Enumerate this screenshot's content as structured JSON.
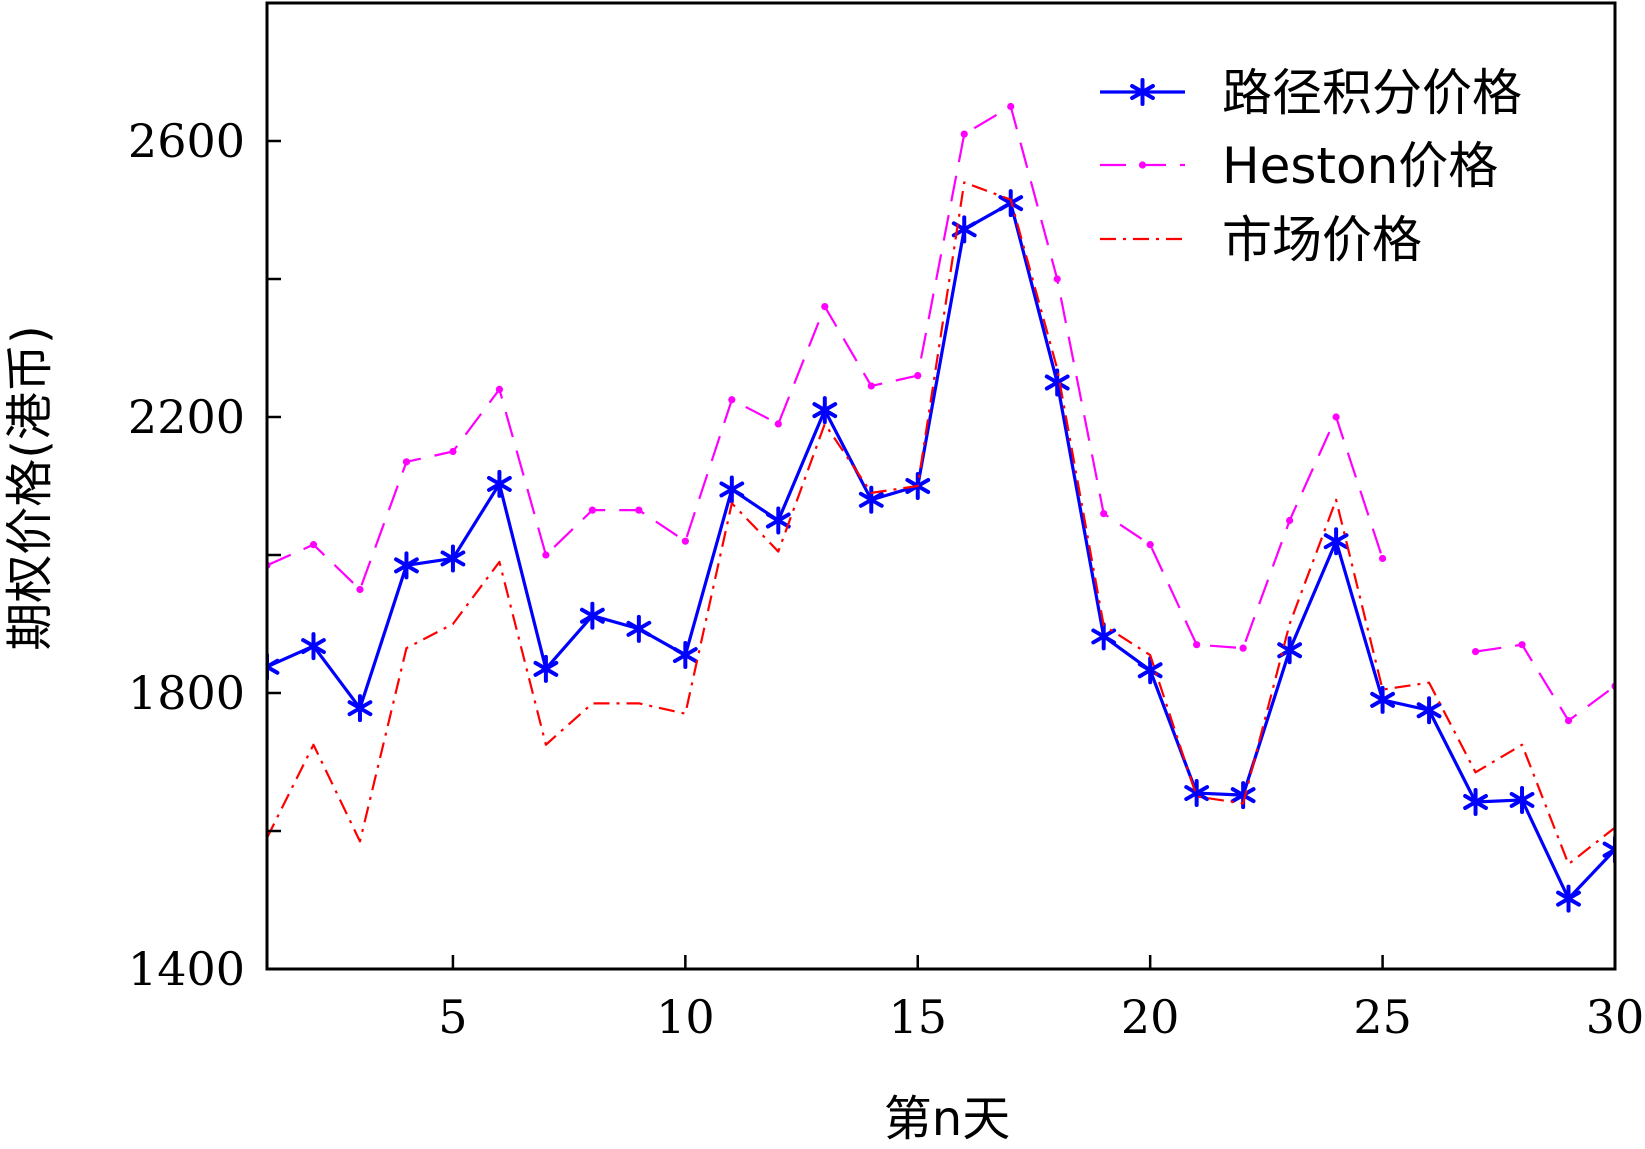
{
  "chart_data": {
    "type": "line",
    "xlabel": "第n天",
    "ylabel": "期权价格(港币)",
    "xlim": [
      1,
      30
    ],
    "ylim": [
      1400,
      2800
    ],
    "xticks": [
      5,
      10,
      15,
      20,
      25,
      30
    ],
    "yticks": [
      1400,
      1800,
      2200,
      2600
    ],
    "yminor_ticks": [
      1600,
      2000,
      2400
    ],
    "grid": false,
    "legend_position": "top-right",
    "series": [
      {
        "name": "路径积分价格",
        "color": "#0000ff",
        "line_style": "solid",
        "marker": "asterisk",
        "x": [
          1,
          2,
          3,
          4,
          5,
          6,
          7,
          8,
          9,
          10,
          11,
          12,
          13,
          14,
          15,
          16,
          17,
          18,
          19,
          20,
          21,
          22,
          23,
          24,
          25,
          26,
          27,
          28,
          29,
          30
        ],
        "values": [
          1838,
          1868,
          1778,
          1985,
          1995,
          2103,
          1835,
          1912,
          1893,
          1855,
          2095,
          2050,
          2210,
          2080,
          2100,
          2472,
          2510,
          2250,
          1882,
          1833,
          1655,
          1652,
          1862,
          2020,
          1790,
          1775,
          1642,
          1645,
          1502,
          1573
        ]
      },
      {
        "name": "Heston价格",
        "color": "#ff00ff",
        "line_style": "dashed",
        "marker": "dot",
        "x": [
          1,
          2,
          3,
          4,
          5,
          6,
          7,
          8,
          9,
          10,
          11,
          12,
          13,
          14,
          15,
          16,
          17,
          18,
          19,
          20,
          21,
          22,
          23,
          24,
          25,
          27,
          28,
          29,
          30
        ],
        "values": [
          1985,
          2015,
          1950,
          2135,
          2150,
          2240,
          2000,
          2065,
          2065,
          2020,
          2225,
          2190,
          2360,
          2245,
          2260,
          2610,
          2650,
          2400,
          2060,
          2015,
          1870,
          1865,
          2050,
          2200,
          1995,
          1860,
          1870,
          1760,
          1810
        ]
      },
      {
        "name": "市场价格",
        "color": "#ff0000",
        "line_style": "dashdot",
        "marker": "none",
        "x": [
          1,
          2,
          3,
          4,
          5,
          6,
          7,
          8,
          9,
          10,
          11,
          12,
          13,
          14,
          15,
          16,
          17,
          18,
          19,
          20,
          21,
          22,
          23,
          24,
          25,
          26,
          27,
          28,
          29,
          30
        ],
        "values": [
          1590,
          1725,
          1585,
          1865,
          1900,
          1990,
          1725,
          1785,
          1785,
          1770,
          2075,
          2005,
          2190,
          2090,
          2100,
          2540,
          2515,
          2270,
          1898,
          1855,
          1650,
          1640,
          1900,
          2080,
          1805,
          1815,
          1685,
          1725,
          1552,
          1605
        ]
      }
    ]
  }
}
